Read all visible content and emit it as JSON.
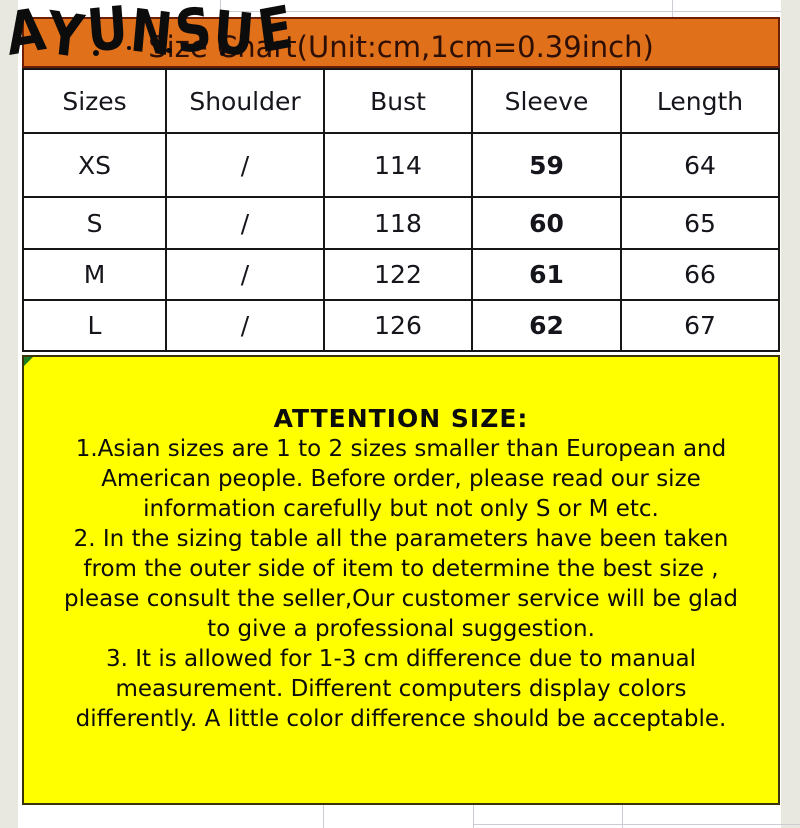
{
  "brand": {
    "logo_text": "AYUNSUE"
  },
  "banner": {
    "title": "Size Chart(Unit:cm,1cm=0.39inch)"
  },
  "size_table": {
    "headers": [
      "Sizes",
      "Shoulder",
      "Bust",
      "Sleeve",
      "Length"
    ],
    "rows": [
      {
        "size": "XS",
        "shoulder": "/",
        "bust": "114",
        "sleeve": "59",
        "length": "64"
      },
      {
        "size": "S",
        "shoulder": "/",
        "bust": "118",
        "sleeve": "60",
        "length": "65"
      },
      {
        "size": "M",
        "shoulder": "/",
        "bust": "122",
        "sleeve": "61",
        "length": "66"
      },
      {
        "size": "L",
        "shoulder": "/",
        "bust": "126",
        "sleeve": "62",
        "length": "67"
      }
    ]
  },
  "attention": {
    "lines": [
      "ATTENTION SIZE:",
      "1.Asian sizes are 1 to 2 sizes smaller than European and",
      "American people. Before order, please read our size",
      "information carefully but not only S or M etc.",
      "2. In the sizing table all the parameters have been taken",
      "from the outer side of item to determine the best size ,",
      "please consult the seller,Our customer service will be glad",
      "to give a professional suggestion.",
      "3. It is allowed for 1-3 cm difference due to manual",
      "measurement. Different computers display colors",
      "differently. A little color difference should be acceptable."
    ]
  },
  "colors": {
    "banner_orange": "#e0701a",
    "banner_border_maroon": "#6d1f06",
    "attention_yellow": "#ffff00",
    "attention_border": "#3a3508",
    "margin_beige": "#e9e8e0",
    "table_border_black": "#161616",
    "corner_triangle_green": "#1e7d1e"
  }
}
